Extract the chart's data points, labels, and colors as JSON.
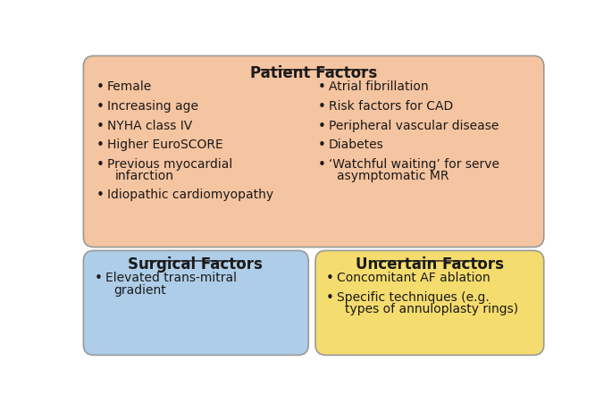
{
  "patient_title": "Patient Factors",
  "patient_bg": "#F5C4A0",
  "patient_left_items": [
    "Female",
    "Increasing age",
    "NYHA class IV",
    "Higher EuroSCORE",
    "Previous myocardial\ninfarction",
    "Idiopathic cardiomyopathy"
  ],
  "patient_right_items": [
    "Atrial fibrillation",
    "Risk factors for CAD",
    "Peripheral vascular disease",
    "Diabetes",
    "‘Watchful waiting’ for serve\nasymptomatic MR"
  ],
  "surgical_title": "Surgical Factors",
  "surgical_bg": "#AECDE8",
  "surgical_items": [
    "Elevated trans-mitral\ngradient"
  ],
  "uncertain_title": "Uncertain Factors",
  "uncertain_bg": "#F5DC6E",
  "uncertain_items": [
    "Concomitant AF ablation",
    "Specific techniques (e.g.\ntypes of annuloplasty rings)"
  ],
  "title_fontsize": 11,
  "body_fontsize": 10,
  "title_color": "#1A1A1A",
  "text_color": "#1A1A1A",
  "bg_color": "#FFFFFF",
  "edge_color": "#999999",
  "underline_color": "#1A1A1A"
}
